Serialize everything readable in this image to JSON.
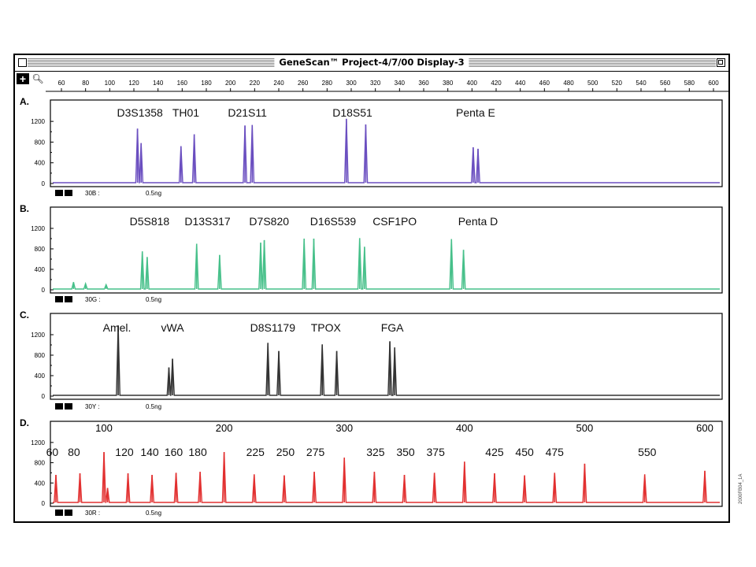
{
  "window": {
    "title": "GeneScan™ Project-4/7/00 Display-3"
  },
  "toolbar": {
    "select_icon": "crosshair-icon",
    "zoom_icon": "magnifier-icon"
  },
  "top_ruler": {
    "ticks": [
      "60",
      "80",
      "100",
      "120",
      "140",
      "160",
      "180",
      "200",
      "220",
      "240",
      "260",
      "280",
      "300",
      "320",
      "340",
      "360",
      "380",
      "400",
      "420",
      "440",
      "460",
      "480",
      "500",
      "520",
      "540",
      "560",
      "580",
      "600"
    ]
  },
  "side_code": "2000FB04_1A",
  "colors": {
    "panel_a": "#6b4fc0",
    "panel_b": "#47c08a",
    "panel_c": "#333333",
    "panel_d": "#e23030"
  },
  "chart_data": [
    {
      "type": "line",
      "panel": "A.",
      "ylim": [
        0,
        1400
      ],
      "yticks": [
        "1200",
        "800",
        "400",
        "0"
      ],
      "xlim": [
        60,
        610
      ],
      "footer": {
        "label": "30B :",
        "amount": "0.5ng"
      },
      "loci": [
        {
          "name": "D3S1358",
          "x": 125
        },
        {
          "name": "TH01",
          "x": 163
        },
        {
          "name": "D21S11",
          "x": 214
        },
        {
          "name": "D18S51",
          "x": 301
        },
        {
          "name": "Penta E",
          "x": 403
        }
      ],
      "series": [
        {
          "values": [
            [
              123,
              1060
            ],
            [
              126,
              780
            ],
            [
              159,
              720
            ],
            [
              170,
              950
            ],
            [
              212,
              1120
            ],
            [
              218,
              1130
            ],
            [
              296,
              1250
            ],
            [
              312,
              1140
            ],
            [
              401,
              700
            ],
            [
              405,
              670
            ]
          ]
        }
      ]
    },
    {
      "type": "line",
      "panel": "B.",
      "ylim": [
        0,
        1400
      ],
      "yticks": [
        "1200",
        "800",
        "400",
        "0"
      ],
      "xlim": [
        60,
        610
      ],
      "footer": {
        "label": "30G :",
        "amount": "0.5ng"
      },
      "loci": [
        {
          "name": "D5S818",
          "x": 133
        },
        {
          "name": "D13S317",
          "x": 181
        },
        {
          "name": "D7S820",
          "x": 232
        },
        {
          "name": "D16S539",
          "x": 285
        },
        {
          "name": "CSF1PO",
          "x": 336
        },
        {
          "name": "Penta D",
          "x": 405
        }
      ],
      "series": [
        {
          "values": [
            [
              70,
              150
            ],
            [
              80,
              120
            ],
            [
              97,
              100
            ],
            [
              127,
              750
            ],
            [
              131,
              640
            ],
            [
              172,
              900
            ],
            [
              191,
              680
            ],
            [
              225,
              920
            ],
            [
              228,
              970
            ],
            [
              261,
              1000
            ],
            [
              269,
              1000
            ],
            [
              307,
              1010
            ],
            [
              311,
              840
            ],
            [
              383,
              990
            ],
            [
              393,
              780
            ]
          ]
        }
      ]
    },
    {
      "type": "line",
      "panel": "C.",
      "ylim": [
        0,
        1400
      ],
      "yticks": [
        "1200",
        "800",
        "400",
        "0"
      ],
      "xlim": [
        60,
        610
      ],
      "footer": {
        "label": "30Y :",
        "amount": "0.5ng"
      },
      "loci": [
        {
          "name": "Amel.",
          "x": 106
        },
        {
          "name": "vWA",
          "x": 152
        },
        {
          "name": "D8S1179",
          "x": 235
        },
        {
          "name": "TPOX",
          "x": 279
        },
        {
          "name": "FGA",
          "x": 334
        }
      ],
      "series": [
        {
          "values": [
            [
              107,
              1380
            ],
            [
              149,
              560
            ],
            [
              152,
              730
            ],
            [
              231,
              1040
            ],
            [
              240,
              880
            ],
            [
              276,
              1010
            ],
            [
              288,
              880
            ],
            [
              332,
              1070
            ],
            [
              336,
              950
            ]
          ]
        }
      ]
    },
    {
      "type": "line",
      "panel": "D.",
      "ylim": [
        0,
        1400
      ],
      "yticks": [
        "1200",
        "800",
        "400",
        "0"
      ],
      "xlim": [
        40,
        633
      ],
      "top_ticks": [
        "100",
        "200",
        "300",
        "400",
        "500",
        "600"
      ],
      "footer": {
        "label": "30R :",
        "amount": "0.5ng"
      },
      "size_labels": [
        {
          "text": "60",
          "x": 57
        },
        {
          "text": "80",
          "x": 75
        },
        {
          "text": "120",
          "x": 117
        },
        {
          "text": "140",
          "x": 138
        },
        {
          "text": "160",
          "x": 158
        },
        {
          "text": "180",
          "x": 178
        },
        {
          "text": "225",
          "x": 226
        },
        {
          "text": "250",
          "x": 251
        },
        {
          "text": "275",
          "x": 276
        },
        {
          "text": "325",
          "x": 326
        },
        {
          "text": "350",
          "x": 351
        },
        {
          "text": "375",
          "x": 376
        },
        {
          "text": "425",
          "x": 425
        },
        {
          "text": "450",
          "x": 450
        },
        {
          "text": "475",
          "x": 475
        },
        {
          "text": "550",
          "x": 552
        }
      ],
      "series": [
        {
          "values": [
            [
              60,
              560
            ],
            [
              80,
              590
            ],
            [
              100,
              1010
            ],
            [
              103,
              300
            ],
            [
              120,
              590
            ],
            [
              140,
              560
            ],
            [
              160,
              600
            ],
            [
              180,
              620
            ],
            [
              200,
              1010
            ],
            [
              225,
              570
            ],
            [
              250,
              550
            ],
            [
              275,
              620
            ],
            [
              300,
              900
            ],
            [
              325,
              620
            ],
            [
              350,
              560
            ],
            [
              375,
              600
            ],
            [
              400,
              820
            ],
            [
              425,
              590
            ],
            [
              450,
              550
            ],
            [
              475,
              600
            ],
            [
              500,
              780
            ],
            [
              550,
              570
            ],
            [
              600,
              640
            ]
          ]
        }
      ]
    }
  ]
}
